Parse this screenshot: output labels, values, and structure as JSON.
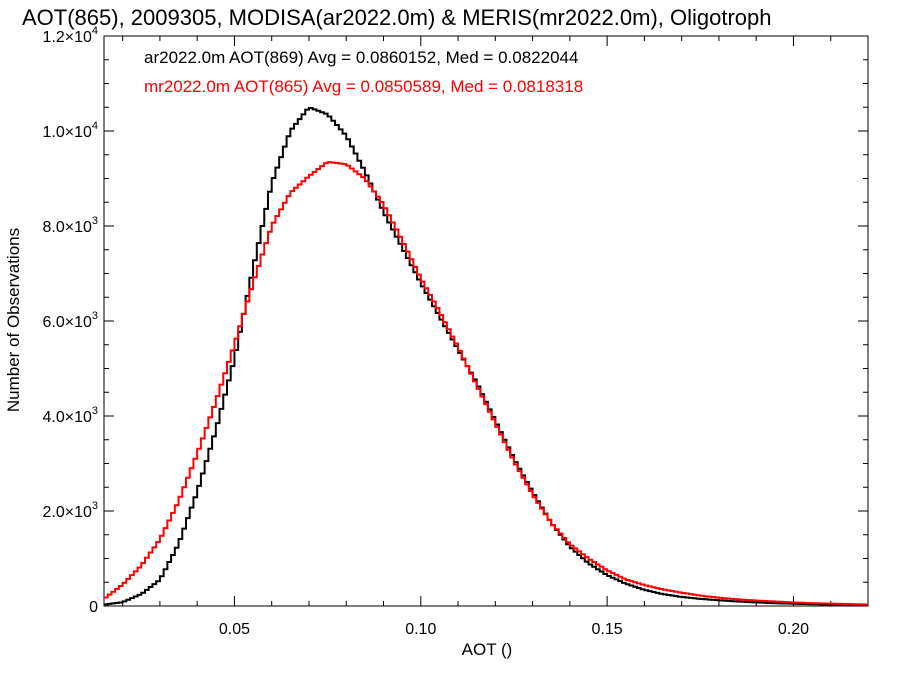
{
  "chart_data": {
    "type": "line",
    "title": "AOT(865), 2009305, MODISA(ar2022.0m) & MERIS(mr2022.0m), Oligotroph",
    "xlabel": "AOT ()",
    "ylabel": "Number of Observations",
    "xlim": [
      0.015,
      0.22
    ],
    "ylim": [
      0,
      12000
    ],
    "x_ticks": [
      0.05,
      0.1,
      0.15,
      0.2
    ],
    "x_tick_labels": [
      "0.05",
      "0.10",
      "0.15",
      "0.20"
    ],
    "y_ticks": [
      0,
      2000,
      4000,
      6000,
      8000,
      10000,
      12000
    ],
    "y_tick_labels": [
      {
        "mantissa": "0",
        "exp": ""
      },
      {
        "mantissa": "2.0×10",
        "exp": "3"
      },
      {
        "mantissa": "4.0×10",
        "exp": "3"
      },
      {
        "mantissa": "6.0×10",
        "exp": "3"
      },
      {
        "mantissa": "8.0×10",
        "exp": "3"
      },
      {
        "mantissa": "1.0×10",
        "exp": "4"
      },
      {
        "mantissa": "1.2×10",
        "exp": "4"
      }
    ],
    "grid": false,
    "legend_placement": "top-left",
    "series": [
      {
        "legend": "ar2022.0m AOT(869) Avg = 0.0860152, Med = 0.0822044",
        "color": "#000000",
        "x": [
          0.015,
          0.02,
          0.025,
          0.03,
          0.035,
          0.04,
          0.045,
          0.05,
          0.055,
          0.06,
          0.065,
          0.07,
          0.075,
          0.08,
          0.085,
          0.09,
          0.095,
          0.1,
          0.105,
          0.11,
          0.115,
          0.12,
          0.125,
          0.13,
          0.135,
          0.14,
          0.145,
          0.15,
          0.155,
          0.16,
          0.165,
          0.17,
          0.175,
          0.18,
          0.185,
          0.19,
          0.195,
          0.2,
          0.205,
          0.21,
          0.215,
          0.22
        ],
        "y": [
          30,
          80,
          250,
          550,
          1300,
          2400,
          3700,
          5200,
          7100,
          8900,
          10000,
          10500,
          10350,
          9900,
          9150,
          8300,
          7550,
          6800,
          6100,
          5400,
          4700,
          3900,
          3100,
          2400,
          1750,
          1250,
          900,
          650,
          470,
          340,
          250,
          190,
          150,
          120,
          95,
          75,
          60,
          48,
          38,
          30,
          24,
          20
        ]
      },
      {
        "legend": "mr2022.0m AOT(865) Avg = 0.0850589, Med = 0.0818318",
        "color": "#ff0000",
        "x": [
          0.015,
          0.02,
          0.025,
          0.03,
          0.035,
          0.04,
          0.045,
          0.05,
          0.055,
          0.06,
          0.065,
          0.07,
          0.075,
          0.08,
          0.085,
          0.09,
          0.095,
          0.1,
          0.105,
          0.11,
          0.115,
          0.12,
          0.125,
          0.13,
          0.135,
          0.14,
          0.145,
          0.15,
          0.155,
          0.16,
          0.165,
          0.17,
          0.175,
          0.18,
          0.185,
          0.19,
          0.195,
          0.2,
          0.205,
          0.21,
          0.215,
          0.22
        ],
        "y": [
          150,
          450,
          850,
          1400,
          2200,
          3200,
          4300,
          5500,
          6800,
          8000,
          8700,
          9050,
          9350,
          9300,
          9000,
          8450,
          7700,
          6900,
          6200,
          5450,
          4650,
          3850,
          3050,
          2350,
          1750,
          1300,
          1000,
          750,
          560,
          440,
          350,
          280,
          220,
          175,
          140,
          115,
          95,
          75,
          60,
          50,
          40,
          30
        ]
      }
    ]
  }
}
